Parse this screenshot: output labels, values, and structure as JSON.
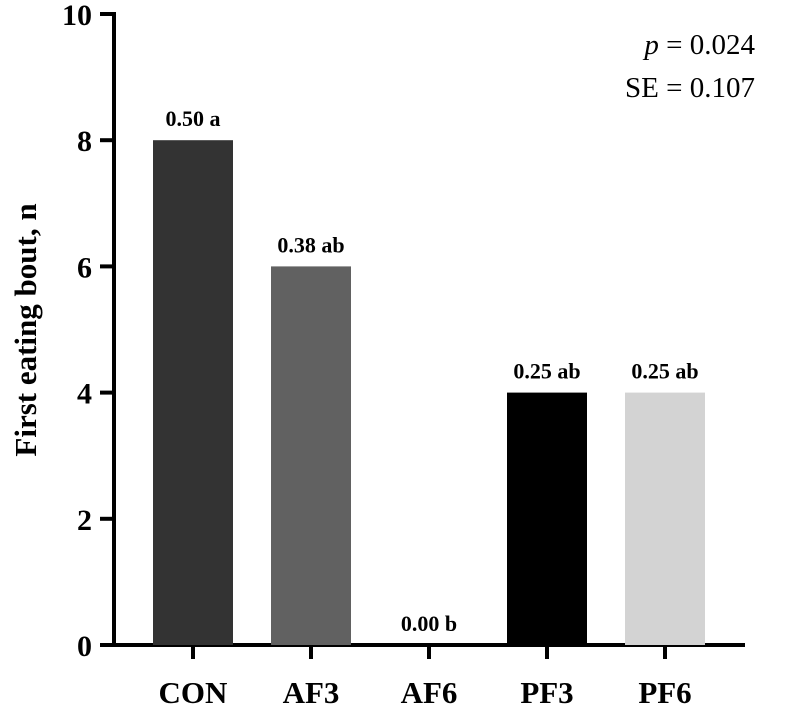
{
  "chart_data": {
    "type": "bar",
    "title": "",
    "xlabel": "",
    "ylabel": "First eating bout, n",
    "ylim": [
      0,
      10
    ],
    "yticks": [
      "0",
      "2",
      "4",
      "6",
      "8",
      "10"
    ],
    "categories": [
      "CON",
      "AF3",
      "AF6",
      "PF3",
      "PF6"
    ],
    "values": [
      8,
      6,
      0,
      4,
      4
    ],
    "data_labels": [
      "0.50 a",
      "0.38 ab",
      "0.00 b",
      "0.25 ab",
      "0.25 ab"
    ],
    "bar_colors": [
      "#333333",
      "#616161",
      "#ffffff",
      "#000000",
      "#d3d3d3"
    ],
    "annotations": {
      "p_symbol": "p",
      "p_rest": " = 0.024",
      "se": "SE = 0.107"
    },
    "grid": false
  }
}
